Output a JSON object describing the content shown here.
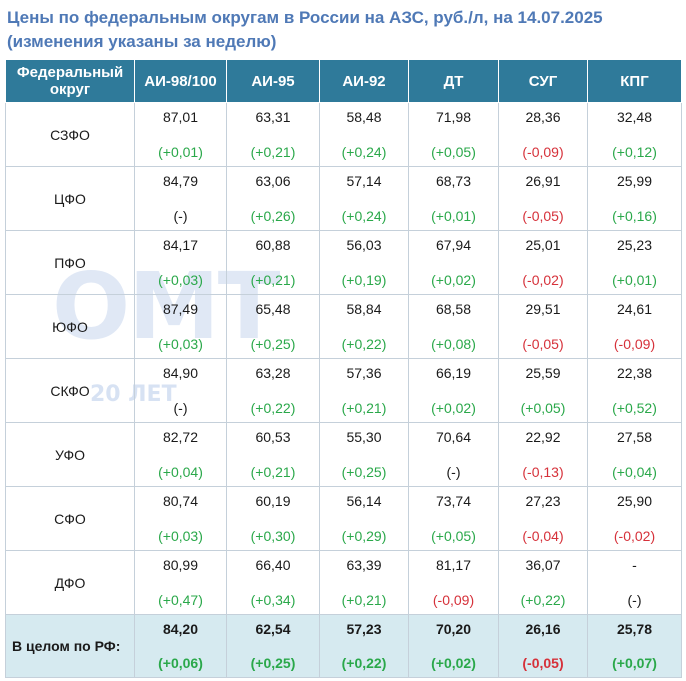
{
  "title": {
    "line1": "Цены по федеральным округам в России на АЗС, руб./л, на 14.07.2025",
    "line2": "(изменения указаны за неделю)"
  },
  "watermark": {
    "big": "ОМТ",
    "sub": "20 ЛЕТ"
  },
  "headers": [
    "Федеральный округ",
    "АИ-98/100",
    "АИ-95",
    "АИ-92",
    "ДТ",
    "СУГ",
    "КПГ"
  ],
  "rows": [
    {
      "region": "СЗФО",
      "cells": [
        {
          "price": "87,01",
          "change": "(+0,01)",
          "trend": "pos"
        },
        {
          "price": "63,31",
          "change": "(+0,21)",
          "trend": "pos"
        },
        {
          "price": "58,48",
          "change": "(+0,24)",
          "trend": "pos"
        },
        {
          "price": "71,98",
          "change": "(+0,05)",
          "trend": "pos"
        },
        {
          "price": "28,36",
          "change": "(-0,09)",
          "trend": "neg"
        },
        {
          "price": "32,48",
          "change": "(+0,12)",
          "trend": "pos"
        }
      ]
    },
    {
      "region": "ЦФО",
      "cells": [
        {
          "price": "84,79",
          "change": "(-)",
          "trend": "neu"
        },
        {
          "price": "63,06",
          "change": "(+0,26)",
          "trend": "pos"
        },
        {
          "price": "57,14",
          "change": "(+0,24)",
          "trend": "pos"
        },
        {
          "price": "68,73",
          "change": "(+0,01)",
          "trend": "pos"
        },
        {
          "price": "26,91",
          "change": "(-0,05)",
          "trend": "neg"
        },
        {
          "price": "25,99",
          "change": "(+0,16)",
          "trend": "pos"
        }
      ]
    },
    {
      "region": "ПФО",
      "cells": [
        {
          "price": "84,17",
          "change": "(+0,03)",
          "trend": "pos"
        },
        {
          "price": "60,88",
          "change": "(+0,21)",
          "trend": "pos"
        },
        {
          "price": "56,03",
          "change": "(+0,19)",
          "trend": "pos"
        },
        {
          "price": "67,94",
          "change": "(+0,02)",
          "trend": "pos"
        },
        {
          "price": "25,01",
          "change": "(-0,02)",
          "trend": "neg"
        },
        {
          "price": "25,23",
          "change": "(+0,01)",
          "trend": "pos"
        }
      ]
    },
    {
      "region": "ЮФО",
      "cells": [
        {
          "price": "87,49",
          "change": "(+0,03)",
          "trend": "pos"
        },
        {
          "price": "65,48",
          "change": "(+0,25)",
          "trend": "pos"
        },
        {
          "price": "58,84",
          "change": "(+0,22)",
          "trend": "pos"
        },
        {
          "price": "68,58",
          "change": "(+0,08)",
          "trend": "pos"
        },
        {
          "price": "29,51",
          "change": "(-0,05)",
          "trend": "neg"
        },
        {
          "price": "24,61",
          "change": "(-0,09)",
          "trend": "neg"
        }
      ]
    },
    {
      "region": "СКФО",
      "cells": [
        {
          "price": "84,90",
          "change": "(-)",
          "trend": "neu"
        },
        {
          "price": "63,28",
          "change": "(+0,22)",
          "trend": "pos"
        },
        {
          "price": "57,36",
          "change": "(+0,21)",
          "trend": "pos"
        },
        {
          "price": "66,19",
          "change": "(+0,02)",
          "trend": "pos"
        },
        {
          "price": "25,59",
          "change": "(+0,05)",
          "trend": "pos"
        },
        {
          "price": "22,38",
          "change": "(+0,52)",
          "trend": "pos"
        }
      ]
    },
    {
      "region": "УФО",
      "cells": [
        {
          "price": "82,72",
          "change": "(+0,04)",
          "trend": "pos"
        },
        {
          "price": "60,53",
          "change": "(+0,21)",
          "trend": "pos"
        },
        {
          "price": "55,30",
          "change": "(+0,25)",
          "trend": "pos"
        },
        {
          "price": "70,64",
          "change": "(-)",
          "trend": "neu"
        },
        {
          "price": "22,92",
          "change": "(-0,13)",
          "trend": "neg"
        },
        {
          "price": "27,58",
          "change": "(+0,04)",
          "trend": "pos"
        }
      ]
    },
    {
      "region": "СФО",
      "cells": [
        {
          "price": "80,74",
          "change": "(+0,03)",
          "trend": "pos"
        },
        {
          "price": "60,19",
          "change": "(+0,30)",
          "trend": "pos"
        },
        {
          "price": "56,14",
          "change": "(+0,29)",
          "trend": "pos"
        },
        {
          "price": "73,74",
          "change": "(+0,05)",
          "trend": "pos"
        },
        {
          "price": "27,23",
          "change": "(-0,04)",
          "trend": "neg"
        },
        {
          "price": "25,90",
          "change": "(-0,02)",
          "trend": "neg"
        }
      ]
    },
    {
      "region": "ДФО",
      "cells": [
        {
          "price": "80,99",
          "change": "(+0,47)",
          "trend": "pos"
        },
        {
          "price": "66,40",
          "change": "(+0,34)",
          "trend": "pos"
        },
        {
          "price": "63,39",
          "change": "(+0,21)",
          "trend": "pos"
        },
        {
          "price": "81,17",
          "change": "(-0,09)",
          "trend": "neg"
        },
        {
          "price": "36,07",
          "change": "(+0,22)",
          "trend": "pos"
        },
        {
          "price": "-",
          "change": "(-)",
          "trend": "neu"
        }
      ]
    }
  ],
  "total": {
    "region": "В целом по РФ:",
    "cells": [
      {
        "price": "84,20",
        "change": "(+0,06)",
        "trend": "pos"
      },
      {
        "price": "62,54",
        "change": "(+0,25)",
        "trend": "pos"
      },
      {
        "price": "57,23",
        "change": "(+0,22)",
        "trend": "pos"
      },
      {
        "price": "70,20",
        "change": "(+0,02)",
        "trend": "pos"
      },
      {
        "price": "26,16",
        "change": "(-0,05)",
        "trend": "neg"
      },
      {
        "price": "25,78",
        "change": "(+0,07)",
        "trend": "pos"
      }
    ]
  }
}
